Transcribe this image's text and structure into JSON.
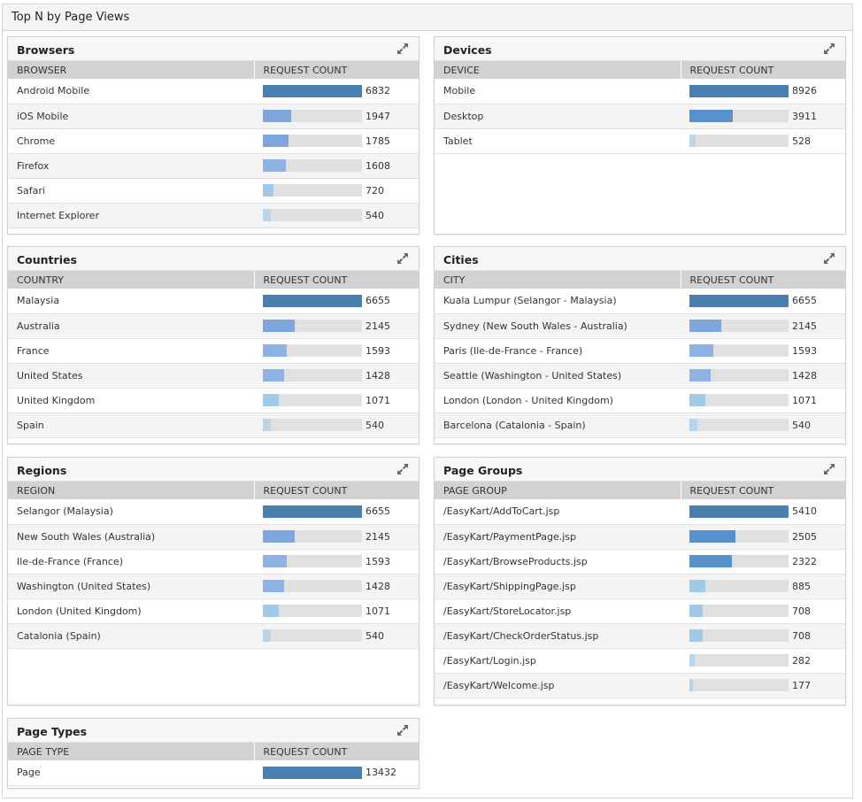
{
  "page": {
    "title": "Top N by Page Views"
  },
  "colors": {
    "bar_levels": [
      "#4a7fb0",
      "#5691ca",
      "#7ea6dd",
      "#8eb2e3",
      "#9fcbea",
      "#b7d6ee"
    ],
    "track": "#e0e0e0"
  },
  "widgets": [
    {
      "id": "browsers",
      "title": "Browsers",
      "col_name": "BROWSER",
      "col_count": "REQUEST COUNT",
      "max": 6832,
      "rows": [
        {
          "name": "Android Mobile",
          "value": 6832
        },
        {
          "name": "iOS Mobile",
          "value": 1947
        },
        {
          "name": "Chrome",
          "value": 1785
        },
        {
          "name": "Firefox",
          "value": 1608
        },
        {
          "name": "Safari",
          "value": 720
        },
        {
          "name": "Internet Explorer",
          "value": 540
        }
      ]
    },
    {
      "id": "devices",
      "title": "Devices",
      "col_name": "DEVICE",
      "col_count": "REQUEST COUNT",
      "max": 8926,
      "rows": [
        {
          "name": "Mobile",
          "value": 8926
        },
        {
          "name": "Desktop",
          "value": 3911
        },
        {
          "name": "Tablet",
          "value": 528
        }
      ]
    },
    {
      "id": "countries",
      "title": "Countries",
      "col_name": "COUNTRY",
      "col_count": "REQUEST COUNT",
      "max": 6655,
      "rows": [
        {
          "name": "Malaysia",
          "value": 6655
        },
        {
          "name": "Australia",
          "value": 2145
        },
        {
          "name": "France",
          "value": 1593
        },
        {
          "name": "United States",
          "value": 1428
        },
        {
          "name": "United Kingdom",
          "value": 1071
        },
        {
          "name": "Spain",
          "value": 540
        }
      ]
    },
    {
      "id": "cities",
      "title": "Cities",
      "col_name": "CITY",
      "col_count": "REQUEST COUNT",
      "max": 6655,
      "rows": [
        {
          "name": "Kuala Lumpur (Selangor - Malaysia)",
          "value": 6655
        },
        {
          "name": "Sydney (New South Wales - Australia)",
          "value": 2145
        },
        {
          "name": "Paris (Ile-de-France - France)",
          "value": 1593
        },
        {
          "name": "Seattle (Washington - United States)",
          "value": 1428
        },
        {
          "name": "London (London - United Kingdom)",
          "value": 1071
        },
        {
          "name": "Barcelona (Catalonia - Spain)",
          "value": 540
        }
      ]
    },
    {
      "id": "regions",
      "title": "Regions",
      "col_name": "REGION",
      "col_count": "REQUEST COUNT",
      "max": 6655,
      "rows": [
        {
          "name": "Selangor (Malaysia)",
          "value": 6655
        },
        {
          "name": "New South Wales (Australia)",
          "value": 2145
        },
        {
          "name": "Ile-de-France (France)",
          "value": 1593
        },
        {
          "name": "Washington (United States)",
          "value": 1428
        },
        {
          "name": "London (United Kingdom)",
          "value": 1071
        },
        {
          "name": "Catalonia (Spain)",
          "value": 540
        }
      ]
    },
    {
      "id": "page-groups",
      "title": "Page Groups",
      "col_name": "PAGE GROUP",
      "col_count": "REQUEST COUNT",
      "max": 5410,
      "rows": [
        {
          "name": "/EasyKart/AddToCart.jsp",
          "value": 5410
        },
        {
          "name": "/EasyKart/PaymentPage.jsp",
          "value": 2505
        },
        {
          "name": "/EasyKart/BrowseProducts.jsp",
          "value": 2322
        },
        {
          "name": "/EasyKart/ShippingPage.jsp",
          "value": 885
        },
        {
          "name": "/EasyKart/StoreLocator.jsp",
          "value": 708
        },
        {
          "name": "/EasyKart/CheckOrderStatus.jsp",
          "value": 708
        },
        {
          "name": "/EasyKart/Login.jsp",
          "value": 282
        },
        {
          "name": "/EasyKart/Welcome.jsp",
          "value": 177
        }
      ]
    },
    {
      "id": "page-types",
      "title": "Page Types",
      "col_name": "PAGE TYPE",
      "col_count": "REQUEST COUNT",
      "max": 13432,
      "rows": [
        {
          "name": "Page",
          "value": 13432
        }
      ]
    }
  ]
}
